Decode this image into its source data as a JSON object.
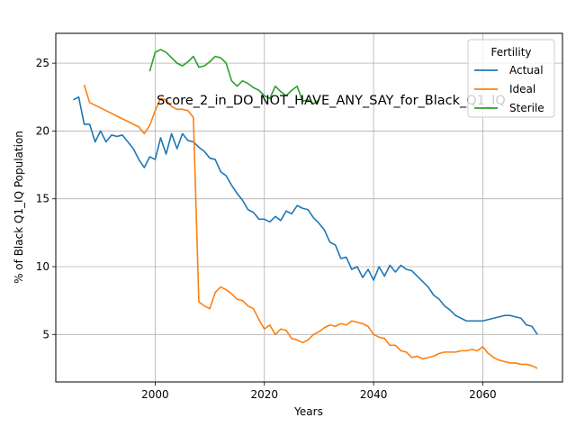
{
  "chart_data": {
    "type": "line",
    "title": "Score_2_in_DO_NOT_HAVE_ANY_SAY_for_Black_Q1_IQ",
    "xlabel": "Years",
    "ylabel": "% of Black Q1_IQ Population",
    "xlim": [
      1981.8,
      2074.6
    ],
    "ylim": [
      1.5,
      27.2
    ],
    "x_ticks": [
      2000,
      2020,
      2040,
      2060
    ],
    "y_ticks": [
      5,
      10,
      15,
      20,
      25
    ],
    "grid": true,
    "legend": {
      "title": "Fertility",
      "position": "top-right"
    },
    "series": [
      {
        "name": "Actual",
        "color": "#1f77b4",
        "points": [
          [
            1985,
            22.3
          ],
          [
            1986,
            22.5
          ],
          [
            1987,
            20.5
          ],
          [
            1988,
            20.5
          ],
          [
            1989,
            19.2
          ],
          [
            1990,
            20.0
          ],
          [
            1991,
            19.2
          ],
          [
            1992,
            19.7
          ],
          [
            1993,
            19.6
          ],
          [
            1994,
            19.7
          ],
          [
            1995,
            19.2
          ],
          [
            1996,
            18.7
          ],
          [
            1997,
            17.9
          ],
          [
            1998,
            17.3
          ],
          [
            1999,
            18.1
          ],
          [
            2000,
            17.9
          ],
          [
            2001,
            19.5
          ],
          [
            2002,
            18.3
          ],
          [
            2003,
            19.8
          ],
          [
            2004,
            18.7
          ],
          [
            2005,
            19.8
          ],
          [
            2006,
            19.3
          ],
          [
            2007,
            19.2
          ],
          [
            2008,
            18.8
          ],
          [
            2009,
            18.5
          ],
          [
            2010,
            18.0
          ],
          [
            2011,
            17.9
          ],
          [
            2012,
            17.0
          ],
          [
            2013,
            16.7
          ],
          [
            2014,
            16.0
          ],
          [
            2015,
            15.4
          ],
          [
            2016,
            14.9
          ],
          [
            2017,
            14.2
          ],
          [
            2018,
            14.0
          ],
          [
            2019,
            13.5
          ],
          [
            2020,
            13.5
          ],
          [
            2021,
            13.3
          ],
          [
            2022,
            13.7
          ],
          [
            2023,
            13.4
          ],
          [
            2024,
            14.1
          ],
          [
            2025,
            13.9
          ],
          [
            2026,
            14.5
          ],
          [
            2027,
            14.3
          ],
          [
            2028,
            14.2
          ],
          [
            2029,
            13.6
          ],
          [
            2030,
            13.2
          ],
          [
            2031,
            12.7
          ],
          [
            2032,
            11.8
          ],
          [
            2033,
            11.6
          ],
          [
            2034,
            10.6
          ],
          [
            2035,
            10.7
          ],
          [
            2036,
            9.8
          ],
          [
            2037,
            10.0
          ],
          [
            2038,
            9.2
          ],
          [
            2039,
            9.8
          ],
          [
            2040,
            9.0
          ],
          [
            2041,
            10.0
          ],
          [
            2042,
            9.3
          ],
          [
            2043,
            10.1
          ],
          [
            2044,
            9.6
          ],
          [
            2045,
            10.1
          ],
          [
            2046,
            9.8
          ],
          [
            2047,
            9.7
          ],
          [
            2048,
            9.3
          ],
          [
            2049,
            8.9
          ],
          [
            2050,
            8.5
          ],
          [
            2051,
            7.9
          ],
          [
            2052,
            7.6
          ],
          [
            2053,
            7.1
          ],
          [
            2054,
            6.8
          ],
          [
            2055,
            6.4
          ],
          [
            2056,
            6.2
          ],
          [
            2057,
            6.0
          ],
          [
            2058,
            6.0
          ],
          [
            2059,
            6.0
          ],
          [
            2060,
            6.0
          ],
          [
            2061,
            6.1
          ],
          [
            2062,
            6.2
          ],
          [
            2063,
            6.3
          ],
          [
            2064,
            6.4
          ],
          [
            2065,
            6.4
          ],
          [
            2066,
            6.3
          ],
          [
            2067,
            6.2
          ],
          [
            2068,
            5.7
          ],
          [
            2069,
            5.6
          ],
          [
            2070,
            5.0
          ]
        ]
      },
      {
        "name": "Ideal",
        "color": "#ff7f0e",
        "points": [
          [
            1987,
            23.4
          ],
          [
            1988,
            22.1
          ],
          [
            1989,
            21.9
          ],
          [
            1990,
            21.7
          ],
          [
            1991,
            21.5
          ],
          [
            1992,
            21.3
          ],
          [
            1993,
            21.1
          ],
          [
            1994,
            20.9
          ],
          [
            1995,
            20.7
          ],
          [
            1996,
            20.5
          ],
          [
            1997,
            20.3
          ],
          [
            1998,
            19.8
          ],
          [
            1999,
            20.4
          ],
          [
            2000,
            21.5
          ],
          [
            2001,
            22.4
          ],
          [
            2002,
            22.3
          ],
          [
            2003,
            21.8
          ],
          [
            2004,
            21.6
          ],
          [
            2005,
            21.6
          ],
          [
            2006,
            21.5
          ],
          [
            2007,
            21.0
          ],
          [
            2008,
            7.4
          ],
          [
            2009,
            7.1
          ],
          [
            2010,
            6.9
          ],
          [
            2011,
            8.1
          ],
          [
            2012,
            8.5
          ],
          [
            2013,
            8.3
          ],
          [
            2014,
            8.0
          ],
          [
            2015,
            7.6
          ],
          [
            2016,
            7.5
          ],
          [
            2017,
            7.1
          ],
          [
            2018,
            6.9
          ],
          [
            2019,
            6.1
          ],
          [
            2020,
            5.4
          ],
          [
            2021,
            5.7
          ],
          [
            2022,
            5.0
          ],
          [
            2023,
            5.4
          ],
          [
            2024,
            5.3
          ],
          [
            2025,
            4.7
          ],
          [
            2026,
            4.6
          ],
          [
            2027,
            4.4
          ],
          [
            2028,
            4.6
          ],
          [
            2029,
            5.0
          ],
          [
            2030,
            5.2
          ],
          [
            2031,
            5.5
          ],
          [
            2032,
            5.7
          ],
          [
            2033,
            5.6
          ],
          [
            2034,
            5.8
          ],
          [
            2035,
            5.7
          ],
          [
            2036,
            6.0
          ],
          [
            2037,
            5.9
          ],
          [
            2038,
            5.8
          ],
          [
            2039,
            5.6
          ],
          [
            2040,
            5.0
          ],
          [
            2041,
            4.8
          ],
          [
            2042,
            4.7
          ],
          [
            2043,
            4.2
          ],
          [
            2044,
            4.2
          ],
          [
            2045,
            3.8
          ],
          [
            2046,
            3.7
          ],
          [
            2047,
            3.3
          ],
          [
            2048,
            3.4
          ],
          [
            2049,
            3.2
          ],
          [
            2050,
            3.3
          ],
          [
            2051,
            3.4
          ],
          [
            2052,
            3.6
          ],
          [
            2053,
            3.7
          ],
          [
            2054,
            3.7
          ],
          [
            2055,
            3.7
          ],
          [
            2056,
            3.8
          ],
          [
            2057,
            3.8
          ],
          [
            2058,
            3.9
          ],
          [
            2059,
            3.8
          ],
          [
            2060,
            4.1
          ],
          [
            2061,
            3.6
          ],
          [
            2062,
            3.3
          ],
          [
            2063,
            3.1
          ],
          [
            2064,
            3.0
          ],
          [
            2065,
            2.9
          ],
          [
            2066,
            2.9
          ],
          [
            2067,
            2.8
          ],
          [
            2068,
            2.8
          ],
          [
            2069,
            2.7
          ],
          [
            2070,
            2.5
          ]
        ]
      },
      {
        "name": "Sterile",
        "color": "#2ca02c",
        "points": [
          [
            1999,
            24.4
          ],
          [
            2000,
            25.8
          ],
          [
            2001,
            26.0
          ],
          [
            2002,
            25.8
          ],
          [
            2003,
            25.4
          ],
          [
            2004,
            25.0
          ],
          [
            2005,
            24.8
          ],
          [
            2006,
            25.1
          ],
          [
            2007,
            25.5
          ],
          [
            2008,
            24.7
          ],
          [
            2009,
            24.8
          ],
          [
            2010,
            25.1
          ],
          [
            2011,
            25.5
          ],
          [
            2012,
            25.4
          ],
          [
            2013,
            25.0
          ],
          [
            2014,
            23.7
          ],
          [
            2015,
            23.3
          ],
          [
            2016,
            23.7
          ],
          [
            2017,
            23.5
          ],
          [
            2018,
            23.2
          ],
          [
            2019,
            23.0
          ],
          [
            2020,
            22.6
          ],
          [
            2021,
            22.4
          ],
          [
            2022,
            23.3
          ],
          [
            2023,
            22.9
          ],
          [
            2024,
            22.6
          ],
          [
            2025,
            23.0
          ],
          [
            2026,
            23.3
          ],
          [
            2027,
            22.2
          ],
          [
            2028,
            22.3
          ],
          [
            2029,
            22.0
          ],
          [
            2030,
            22.3
          ]
        ]
      }
    ]
  }
}
